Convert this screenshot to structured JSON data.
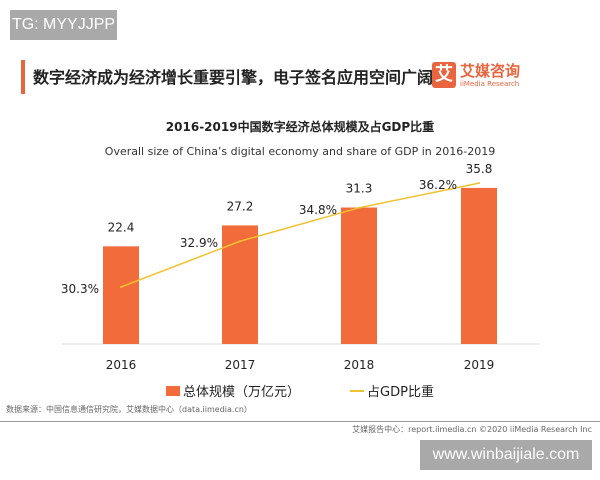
{
  "watermark_top": "TG: MYYJJPP",
  "watermark_bottom": "www.winbaijiale.com",
  "headline": "数字经济成为经济增长重要引擎，电子签名应用空间广阔",
  "logo": {
    "mark": "艾",
    "name_cn": "艾媒咨询",
    "name_en": "iiMedia Research"
  },
  "source": "数据来源：中国信息通信研究院，艾媒数据中心（data.iimedia.cn）",
  "footer": "艾媒报告中心：report.iimedia.cn   ©2020  iiMedia Research  Inc",
  "colors": {
    "bar": "#f26b3a",
    "line": "#f2c12e",
    "accent": "#e8653f"
  },
  "chart_data": {
    "type": "bar+line",
    "title": "2016-2019中国数字经济总体规模及占GDP比重",
    "subtitle": "Overall size of China’s  digital economy and share of GDP in 2016-2019",
    "categories": [
      "2016",
      "2017",
      "2018",
      "2019"
    ],
    "series": [
      {
        "name": "总体规模（万亿元）",
        "type": "bar",
        "values": [
          22.4,
          27.2,
          31.3,
          35.8
        ],
        "labels": [
          "22.4",
          "27.2",
          "31.3",
          "35.8"
        ]
      },
      {
        "name": "占GDP比重",
        "type": "line",
        "values": [
          30.3,
          32.9,
          34.8,
          36.2
        ],
        "labels": [
          "30.3%",
          "32.9%",
          "34.8%",
          "36.2%"
        ]
      }
    ],
    "grid": false,
    "legend": "bottom"
  }
}
